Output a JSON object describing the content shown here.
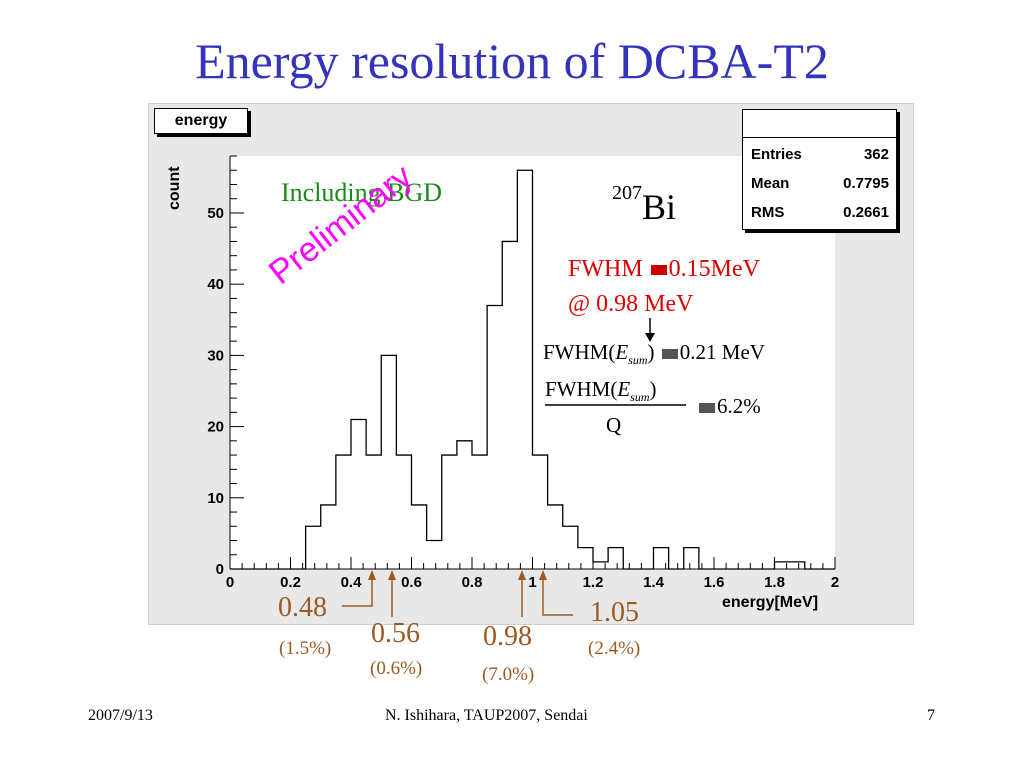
{
  "slide": {
    "title": "Energy resolution of DCBA-T2",
    "footer_date": "2007/9/13",
    "footer_center": "N. Ishihara, TAUP2007, Sendai",
    "footer_page": "7"
  },
  "histogram": {
    "name": "energy",
    "stats": [
      {
        "label": "Entries",
        "value": "362"
      },
      {
        "label": "Mean",
        "value": "0.7795"
      },
      {
        "label": "RMS",
        "value": "0.2661"
      }
    ]
  },
  "annotations": {
    "bgd": "Including BGD",
    "isotope_mass": "207",
    "isotope_symbol": "Bi",
    "preliminary": "Preliminary",
    "fwhm_line1_a": "FWHM",
    "fwhm_line1_b": "0.15MeV",
    "fwhm_line2": "@ 0.98 MeV",
    "fwhm_sum_a": "FWHM(",
    "fwhm_sum_e": "E",
    "fwhm_sum_sub": "sum",
    "fwhm_sum_close": ")",
    "fwhm_sum_val": "0.21 MeV",
    "ratio_num_a": "FWHM(",
    "ratio_num_e": "E",
    "ratio_num_sub": "sum",
    "ratio_num_close": ")",
    "ratio_den": "Q",
    "ratio_val": "6.2%"
  },
  "peaks": [
    {
      "energy": "0.48",
      "resolution": "(1.5%)"
    },
    {
      "energy": "0.56",
      "resolution": "(0.6%)"
    },
    {
      "energy": "0.98",
      "resolution": "(7.0%)"
    },
    {
      "energy": "1.05",
      "resolution": "(2.4%)"
    }
  ],
  "colors": {
    "title": "#3333bb",
    "bgd": "#1a8a1a",
    "preliminary": "#ff00ff",
    "fwhm": "#dd0000",
    "peaks": "#9a5a22"
  },
  "chart_data": {
    "type": "bar",
    "style": "step-histogram",
    "xlabel": "energy[MeV]",
    "ylabel": "count",
    "xlim": [
      0,
      2
    ],
    "ylim": [
      0,
      58
    ],
    "grid": false,
    "legend": "none",
    "stats_placement": "top-right",
    "x_ticks": [
      0,
      0.2,
      0.4,
      0.6,
      0.8,
      1,
      1.2,
      1.4,
      1.6,
      1.8,
      2
    ],
    "x_tick_labels": [
      "0",
      "0.2",
      "0.4",
      "0.6",
      "0.8",
      "1",
      "1.2",
      "1.4",
      "1.6",
      "1.8",
      "2"
    ],
    "y_ticks": [
      0,
      10,
      20,
      30,
      40,
      50
    ],
    "y_tick_labels": [
      "0",
      "10",
      "20",
      "30",
      "40",
      "50"
    ],
    "bin_edges_start": 0,
    "bin_width": 0.05,
    "values": [
      0,
      0,
      0,
      0,
      0,
      6,
      9,
      16,
      21,
      16,
      30,
      16,
      9,
      4,
      16,
      18,
      16,
      37,
      46,
      56,
      16,
      9,
      6,
      3,
      1,
      3,
      0,
      0,
      3,
      0,
      3,
      0,
      0,
      0,
      0,
      0,
      1,
      1,
      0,
      0
    ]
  }
}
